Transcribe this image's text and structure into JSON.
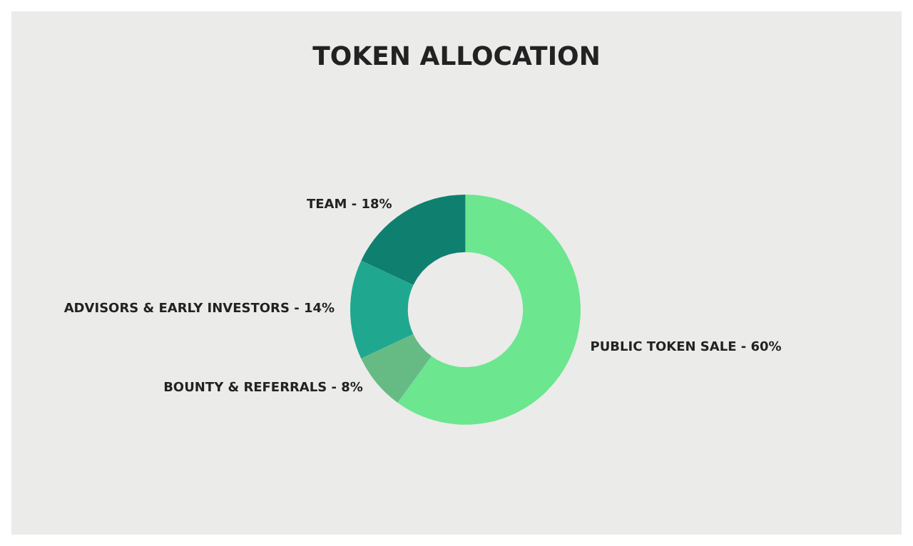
{
  "chart_data": {
    "type": "donut",
    "title": "TOKEN ALLOCATION",
    "categories": [
      "PUBLIC TOKEN SALE - 60%",
      "BOUNTY & REFERRALS - 8%",
      "ADVISORS & EARLY INVESTORS - 14%",
      "TEAM - 18%"
    ],
    "values": [
      60,
      8,
      14,
      18
    ],
    "colors": [
      "#6ce68f",
      "#66bb85",
      "#1fa88f",
      "#0f8070"
    ],
    "legend": false
  }
}
